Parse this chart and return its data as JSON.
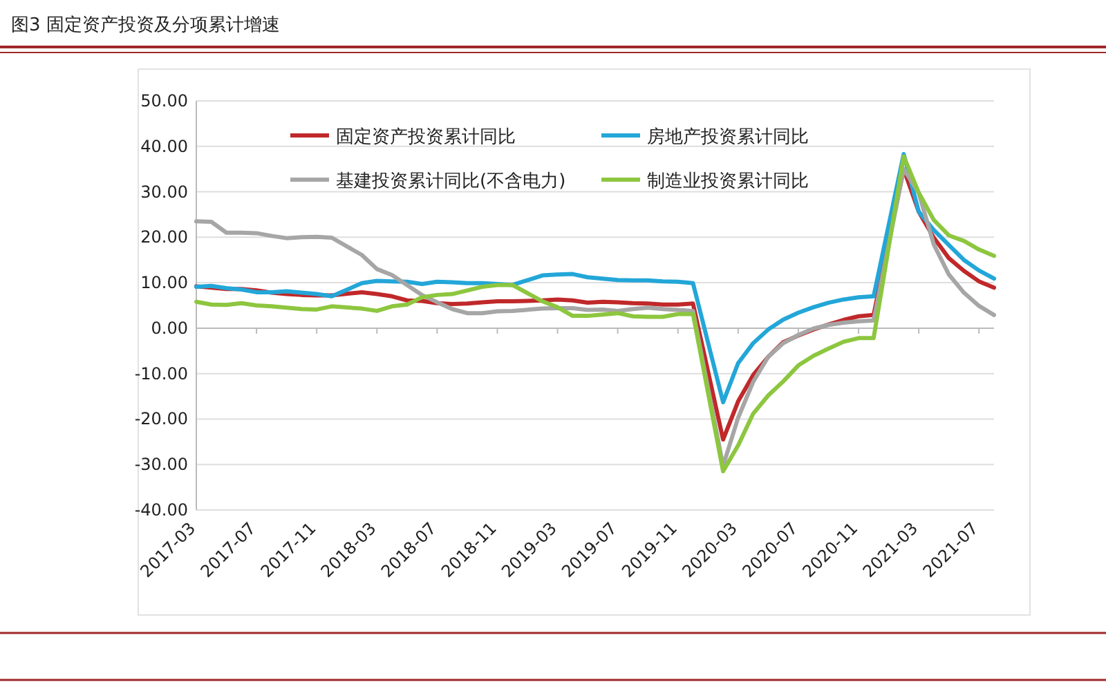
{
  "chart_data": {
    "type": "line",
    "title": "图3 固定资产投资及分项累计增速",
    "x": [
      "2017-03",
      "2017-04",
      "2017-05",
      "2017-06",
      "2017-07",
      "2017-08",
      "2017-09",
      "2017-10",
      "2017-11",
      "2017-12",
      "2018-02",
      "2018-03",
      "2018-04",
      "2018-05",
      "2018-06",
      "2018-07",
      "2018-08",
      "2018-09",
      "2018-10",
      "2018-11",
      "2018-12",
      "2019-02",
      "2019-03",
      "2019-04",
      "2019-05",
      "2019-06",
      "2019-07",
      "2019-08",
      "2019-09",
      "2019-10",
      "2019-11",
      "2019-12",
      "2020-02",
      "2020-03",
      "2020-04",
      "2020-05",
      "2020-06",
      "2020-07",
      "2020-08",
      "2020-09",
      "2020-10",
      "2020-11",
      "2020-12",
      "2021-02",
      "2021-03",
      "2021-04",
      "2021-05",
      "2021-06",
      "2021-07",
      "2021-08"
    ],
    "series": [
      {
        "name": "固定资产投资累计同比",
        "color": "#c0282a",
        "values": [
          9.2,
          8.9,
          8.6,
          8.6,
          8.3,
          7.8,
          7.5,
          7.3,
          7.2,
          7.2,
          7.9,
          7.5,
          7.0,
          6.1,
          6.0,
          5.5,
          5.3,
          5.4,
          5.7,
          5.9,
          5.9,
          6.1,
          6.3,
          6.1,
          5.6,
          5.8,
          5.7,
          5.5,
          5.4,
          5.2,
          5.2,
          5.4,
          -24.5,
          -16.1,
          -10.3,
          -6.3,
          -3.1,
          -1.6,
          -0.3,
          0.8,
          1.8,
          2.6,
          2.9,
          35.0,
          25.6,
          19.9,
          15.4,
          12.6,
          10.3,
          8.9
        ]
      },
      {
        "name": "房地产投资累计同比",
        "color": "#23a6d8",
        "values": [
          9.1,
          9.3,
          8.8,
          8.5,
          7.9,
          7.9,
          8.1,
          7.8,
          7.5,
          7.0,
          9.9,
          10.4,
          10.3,
          10.2,
          9.7,
          10.2,
          10.1,
          9.9,
          9.9,
          9.7,
          9.5,
          11.6,
          11.8,
          11.9,
          11.2,
          10.9,
          10.6,
          10.5,
          10.5,
          10.3,
          10.2,
          9.9,
          -16.3,
          -7.7,
          -3.3,
          -0.3,
          1.9,
          3.4,
          4.6,
          5.6,
          6.3,
          6.8,
          7.0,
          38.3,
          25.6,
          21.6,
          18.3,
          15.0,
          12.7,
          10.9
        ]
      },
      {
        "name": "基建投资累计同比(不含电力)",
        "color": "#a6a6a6",
        "values": [
          23.5,
          23.4,
          21.0,
          21.0,
          20.9,
          20.3,
          19.8,
          20.0,
          20.1,
          19.9,
          16.1,
          13.0,
          11.7,
          9.5,
          7.3,
          5.7,
          4.2,
          3.3,
          3.3,
          3.7,
          3.8,
          4.3,
          4.4,
          4.4,
          4.0,
          4.1,
          3.8,
          4.2,
          4.5,
          4.2,
          4.0,
          3.8,
          -30.3,
          -19.7,
          -11.8,
          -6.3,
          -3.3,
          -1.5,
          -0.1,
          0.7,
          1.2,
          1.5,
          1.7,
          35.0,
          29.7,
          18.4,
          11.8,
          7.8,
          4.9,
          2.9
        ]
      },
      {
        "name": "制造业投资累计同比",
        "color": "#8dc63f",
        "values": [
          5.8,
          5.2,
          5.1,
          5.5,
          5.0,
          4.8,
          4.5,
          4.2,
          4.1,
          4.8,
          4.3,
          3.8,
          4.8,
          5.2,
          6.8,
          7.3,
          7.5,
          8.3,
          9.1,
          9.5,
          9.5,
          5.9,
          4.6,
          2.7,
          2.7,
          3.0,
          3.3,
          2.6,
          2.5,
          2.5,
          3.1,
          3.1,
          -31.5,
          -25.8,
          -18.8,
          -14.8,
          -11.7,
          -8.2,
          -6.1,
          -4.5,
          -3.0,
          -2.2,
          -2.2,
          37.8,
          29.8,
          23.8,
          20.4,
          19.2,
          17.3,
          15.9
        ]
      }
    ],
    "xlim": [
      "2017-03",
      "2021-08"
    ],
    "xticks": [
      "2017-03",
      "2017-07",
      "2017-11",
      "2018-03",
      "2018-07",
      "2018-11",
      "2019-03",
      "2019-07",
      "2019-11",
      "2020-03",
      "2020-07",
      "2020-11",
      "2021-03",
      "2021-07"
    ],
    "ylim": [
      -40,
      50
    ],
    "yticks": [
      {
        "value": -40,
        "label": "-40.00"
      },
      {
        "value": -30,
        "label": "-30.00"
      },
      {
        "value": -20,
        "label": "-20.00"
      },
      {
        "value": -10,
        "label": "-10.00"
      },
      {
        "value": 0,
        "label": "0.00"
      },
      {
        "value": 10,
        "label": "10.00"
      },
      {
        "value": 20,
        "label": "20.00"
      },
      {
        "value": 30,
        "label": "30.00"
      },
      {
        "value": 40,
        "label": "40.00"
      },
      {
        "value": 50,
        "label": "50.00"
      }
    ],
    "grid": "y",
    "legend": "top"
  }
}
